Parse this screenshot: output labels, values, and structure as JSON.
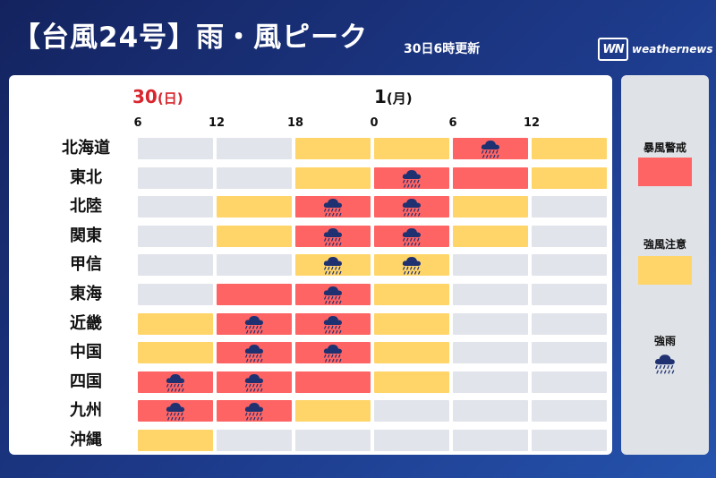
{
  "header": {
    "title": "【台風24号】雨・風ピーク",
    "updated": "30日6時更新",
    "logo_mark": "WN",
    "logo_text": "weathernews"
  },
  "days": [
    {
      "num": "30",
      "weekday": "(日)",
      "color": "#d8262e"
    },
    {
      "num": "1",
      "weekday": "(月)",
      "color": "#111111"
    }
  ],
  "hours": [
    "6",
    "12",
    "18",
    "0",
    "6",
    "12"
  ],
  "colors": {
    "none": "#e1e4ea",
    "caution": "#ffd56a",
    "warning": "#fe6464",
    "rain_icon": "#1f3170"
  },
  "regions": [
    {
      "name": "北海道",
      "cells": [
        "g",
        "g",
        "y",
        "y",
        "r",
        "y"
      ],
      "rain": [
        false,
        false,
        false,
        false,
        true,
        false
      ]
    },
    {
      "name": "東北",
      "cells": [
        "g",
        "g",
        "y",
        "r",
        "r",
        "y"
      ],
      "rain": [
        false,
        false,
        false,
        true,
        false,
        false
      ]
    },
    {
      "name": "北陸",
      "cells": [
        "g",
        "y",
        "r",
        "r",
        "y",
        "g"
      ],
      "rain": [
        false,
        false,
        true,
        true,
        false,
        false
      ]
    },
    {
      "name": "関東",
      "cells": [
        "g",
        "y",
        "r",
        "r",
        "y",
        "g"
      ],
      "rain": [
        false,
        false,
        true,
        true,
        false,
        false
      ]
    },
    {
      "name": "甲信",
      "cells": [
        "g",
        "g",
        "y",
        "y",
        "g",
        "g"
      ],
      "rain": [
        false,
        false,
        true,
        true,
        false,
        false
      ]
    },
    {
      "name": "東海",
      "cells": [
        "g",
        "r",
        "r",
        "y",
        "g",
        "g"
      ],
      "rain": [
        false,
        false,
        true,
        false,
        false,
        false
      ]
    },
    {
      "name": "近畿",
      "cells": [
        "y",
        "r",
        "r",
        "y",
        "g",
        "g"
      ],
      "rain": [
        false,
        true,
        true,
        false,
        false,
        false
      ]
    },
    {
      "name": "中国",
      "cells": [
        "y",
        "r",
        "r",
        "y",
        "g",
        "g"
      ],
      "rain": [
        false,
        true,
        true,
        false,
        false,
        false
      ]
    },
    {
      "name": "四国",
      "cells": [
        "r",
        "r",
        "r",
        "y",
        "g",
        "g"
      ],
      "rain": [
        true,
        true,
        false,
        false,
        false,
        false
      ]
    },
    {
      "name": "九州",
      "cells": [
        "r",
        "r",
        "y",
        "g",
        "g",
        "g"
      ],
      "rain": [
        true,
        true,
        false,
        false,
        false,
        false
      ]
    },
    {
      "name": "沖縄",
      "cells": [
        "y",
        "g",
        "g",
        "g",
        "g",
        "g"
      ],
      "rain": [
        false,
        false,
        false,
        false,
        false,
        false
      ]
    }
  ],
  "legend": {
    "warning_label": "暴風警戒",
    "caution_label": "強風注意",
    "rain_label": "強雨"
  }
}
